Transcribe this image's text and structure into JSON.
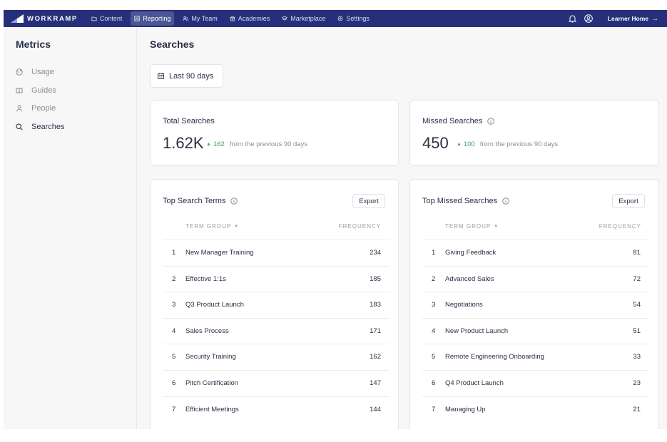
{
  "nav": {
    "logo_text": "WORKRAMP",
    "items": [
      {
        "label": "Content",
        "icon": "folder-icon"
      },
      {
        "label": "Reporting",
        "icon": "chart-icon",
        "active": true
      },
      {
        "label": "My Team",
        "icon": "team-icon"
      },
      {
        "label": "Academies",
        "icon": "academy-icon"
      },
      {
        "label": "Marketplace",
        "icon": "marketplace-icon"
      },
      {
        "label": "Settings",
        "icon": "settings-icon"
      }
    ],
    "learner_home": "Learner Home",
    "learner_arrow": "→"
  },
  "sidebar": {
    "title": "Metrics",
    "items": [
      {
        "label": "Usage",
        "icon": "globe-icon"
      },
      {
        "label": "Guides",
        "icon": "book-icon"
      },
      {
        "label": "People",
        "icon": "person-icon"
      },
      {
        "label": "Searches",
        "icon": "search-icon",
        "active": true
      }
    ]
  },
  "main": {
    "title": "Searches",
    "date_filter": "Last 90 days"
  },
  "stats": {
    "total": {
      "label": "Total Searches",
      "value": "1.62K",
      "delta_arrow": "▲",
      "delta": "162",
      "delta_text": "from the previous 90 days"
    },
    "missed": {
      "label": "Missed Searches",
      "value": "450",
      "delta_arrow": "▲",
      "delta": "100",
      "delta_text": "from the previous 90 days"
    }
  },
  "top_terms": {
    "title": "Top Search Terms",
    "export": "Export",
    "col_term": "TERM GROUP",
    "col_caret": "▼",
    "col_freq": "FREQUENCY",
    "rows": [
      {
        "idx": "1",
        "term": "New Manager Training",
        "freq": "234"
      },
      {
        "idx": "2",
        "term": "Effective 1:1s",
        "freq": "185"
      },
      {
        "idx": "3",
        "term": "Q3 Product Launch",
        "freq": "183"
      },
      {
        "idx": "4",
        "term": "Sales Process",
        "freq": "171"
      },
      {
        "idx": "5",
        "term": "Security Training",
        "freq": "162"
      },
      {
        "idx": "6",
        "term": "Pitch Certification",
        "freq": "147"
      },
      {
        "idx": "7",
        "term": "Efficient Meetings",
        "freq": "144"
      }
    ]
  },
  "top_missed": {
    "title": "Top Missed Searches",
    "export": "Export",
    "col_term": "TERM GROUP",
    "col_caret": "▼",
    "col_freq": "FREQUENCY",
    "rows": [
      {
        "idx": "1",
        "term": "Giving Feedback",
        "freq": "81"
      },
      {
        "idx": "2",
        "term": "Advanced Sales",
        "freq": "72"
      },
      {
        "idx": "3",
        "term": "Negotiations",
        "freq": "54"
      },
      {
        "idx": "4",
        "term": "New Product Launch",
        "freq": "51"
      },
      {
        "idx": "5",
        "term": "Remote Engineering Onboarding",
        "freq": "33"
      },
      {
        "idx": "6",
        "term": "Q4 Product Launch",
        "freq": "23"
      },
      {
        "idx": "7",
        "term": "Managing Up",
        "freq": "21"
      }
    ]
  },
  "colors": {
    "nav_bg": "#26307a",
    "accent_green": "#3aa35b",
    "text": "#2a2f45"
  }
}
